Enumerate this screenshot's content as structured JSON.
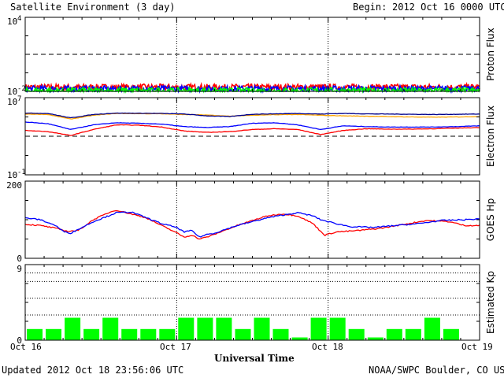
{
  "header": {
    "title": "Satellite Environment (3 day)",
    "begin_label": "Begin:",
    "begin_value": "2012 Oct 16 0000 UTC"
  },
  "footer": {
    "updated": "Updated 2012 Oct 18 23:56:06 UTC",
    "credit": "NOAA/SWPC Boulder, CO USA",
    "xlabel": "Universal Time"
  },
  "colors": {
    "red": "#ff0000",
    "blue": "#0000ff",
    "green": "#00ff00",
    "orange": "#ffa500",
    "darkblue": "#00008b",
    "kp_bar": "#00ff00"
  },
  "chart_data": [
    {
      "type": "line",
      "ylabel": "Proton Flux",
      "yscale": "log",
      "ylim": [
        0.01,
        10000
      ],
      "y_ticks": [
        {
          "base": "10",
          "exp": "4"
        },
        {
          "base": "10",
          "exp": "-2"
        }
      ],
      "threshold_line": 10,
      "x_ticks": [
        "Oct 16",
        "Oct 17",
        "Oct 18",
        "Oct 19"
      ],
      "xlim_days": [
        0,
        3
      ],
      "series": [
        {
          "color": "red",
          "level": 0.022,
          "noise": 0.25
        },
        {
          "color": "blue",
          "level": 0.016,
          "noise": 0.25
        },
        {
          "color": "green",
          "level": 0.011,
          "noise": 0.25
        }
      ]
    },
    {
      "type": "line",
      "ylabel": "Electron Flux",
      "yscale": "log",
      "ylim": [
        0.1,
        10000000
      ],
      "y_ticks": [
        {
          "base": "10",
          "exp": "7"
        },
        {
          "base": "10",
          "exp": "-1"
        }
      ],
      "threshold_line": 1000,
      "x_ticks": [
        "Oct 16",
        "Oct 17",
        "Oct 18",
        "Oct 19"
      ],
      "xlim_days": [
        0,
        3
      ],
      "series": [
        {
          "color": "orange",
          "x": [
            0,
            0.15,
            0.3,
            0.45,
            0.6,
            0.75,
            0.9,
            1.05,
            1.2,
            1.35,
            1.5,
            1.65,
            1.8,
            1.95,
            2.1,
            2.25,
            2.4,
            2.55,
            2.7,
            2.85,
            3.0
          ],
          "y": [
            200000,
            180000,
            60000,
            150000,
            230000,
            220000,
            210000,
            180000,
            160000,
            120000,
            150000,
            170000,
            180000,
            150000,
            130000,
            120000,
            110000,
            100000,
            95000,
            100000,
            110000
          ]
        },
        {
          "color": "darkblue",
          "x": [
            0,
            0.15,
            0.3,
            0.45,
            0.6,
            0.75,
            0.9,
            1.05,
            1.2,
            1.35,
            1.5,
            1.65,
            1.8,
            1.95,
            2.1,
            2.25,
            2.4,
            2.55,
            2.7,
            2.85,
            3.0
          ],
          "y": [
            250000,
            230000,
            80000,
            180000,
            250000,
            240000,
            230000,
            200000,
            130000,
            110000,
            190000,
            210000,
            230000,
            200000,
            230000,
            210000,
            200000,
            190000,
            180000,
            190000,
            200000
          ]
        },
        {
          "color": "blue",
          "x": [
            0,
            0.15,
            0.3,
            0.45,
            0.6,
            0.75,
            0.9,
            1.05,
            1.2,
            1.35,
            1.5,
            1.65,
            1.8,
            1.95,
            2.1,
            2.25,
            2.4,
            2.55,
            2.7,
            2.85,
            3.0
          ],
          "y": [
            30000,
            20000,
            5000,
            15000,
            25000,
            22000,
            18000,
            10000,
            8000,
            10000,
            22000,
            25000,
            15000,
            5000,
            12000,
            10000,
            9000,
            9000,
            9000,
            10000,
            12000
          ]
        },
        {
          "color": "red",
          "x": [
            0,
            0.15,
            0.3,
            0.45,
            0.6,
            0.75,
            0.9,
            1.05,
            1.2,
            1.35,
            1.5,
            1.65,
            1.8,
            1.95,
            2.1,
            2.25,
            2.4,
            2.55,
            2.7,
            2.85,
            3.0
          ],
          "y": [
            4000,
            3000,
            1200,
            5000,
            15000,
            14000,
            9000,
            3500,
            2500,
            3000,
            5000,
            6000,
            5000,
            1500,
            4000,
            6000,
            5500,
            5500,
            6000,
            7000,
            8000
          ]
        }
      ]
    },
    {
      "type": "line",
      "ylabel": "GOES Hp",
      "ylim": [
        0,
        200
      ],
      "y_ticks": [
        "200",
        "0"
      ],
      "x_ticks": [
        "Oct 16",
        "Oct 17",
        "Oct 18",
        "Oct 19"
      ],
      "xlim_days": [
        0,
        3
      ],
      "series": [
        {
          "color": "red",
          "x": [
            0,
            0.1,
            0.2,
            0.28,
            0.35,
            0.45,
            0.55,
            0.6,
            0.7,
            0.8,
            0.9,
            0.98,
            1.05,
            1.1,
            1.15,
            1.2,
            1.25,
            1.3,
            1.4,
            1.5,
            1.6,
            1.7,
            1.8,
            1.9,
            1.95,
            1.98,
            2.05,
            2.2,
            2.35,
            2.5,
            2.65,
            2.8,
            2.9,
            3.0
          ],
          "y": [
            88,
            85,
            78,
            70,
            72,
            100,
            118,
            125,
            115,
            105,
            85,
            70,
            55,
            60,
            50,
            55,
            62,
            70,
            85,
            98,
            110,
            115,
            110,
            90,
            70,
            60,
            68,
            72,
            78,
            88,
            98,
            95,
            85,
            85
          ]
        },
        {
          "color": "blue",
          "x": [
            0,
            0.1,
            0.2,
            0.25,
            0.3,
            0.35,
            0.45,
            0.55,
            0.6,
            0.7,
            0.8,
            0.9,
            1.0,
            1.05,
            1.1,
            1.15,
            1.2,
            1.25,
            1.3,
            1.4,
            1.5,
            1.6,
            1.7,
            1.8,
            1.9,
            1.95,
            2.05,
            2.15,
            2.3,
            2.45,
            2.6,
            2.75,
            2.9,
            3.0
          ],
          "y": [
            105,
            100,
            85,
            70,
            65,
            75,
            95,
            110,
            118,
            120,
            105,
            90,
            80,
            68,
            72,
            55,
            62,
            65,
            72,
            85,
            95,
            105,
            112,
            118,
            110,
            100,
            90,
            82,
            80,
            85,
            90,
            98,
            100,
            102
          ]
        }
      ]
    },
    {
      "type": "bar",
      "ylabel": "Estimated Kp",
      "ylim": [
        0,
        9
      ],
      "y_ticks": [
        "9",
        "0"
      ],
      "x_ticks": [
        "Oct 16",
        "Oct 17",
        "Oct 18",
        "Oct 19"
      ],
      "bar_interval_hours": 3,
      "values": [
        1.33,
        1.33,
        2.67,
        1.33,
        2.67,
        1.33,
        1.33,
        1.33,
        2.67,
        2.67,
        2.67,
        1.33,
        2.67,
        1.33,
        0.33,
        2.67,
        2.67,
        1.33,
        0.33,
        1.33,
        1.33,
        2.67,
        1.33,
        0
      ]
    }
  ]
}
